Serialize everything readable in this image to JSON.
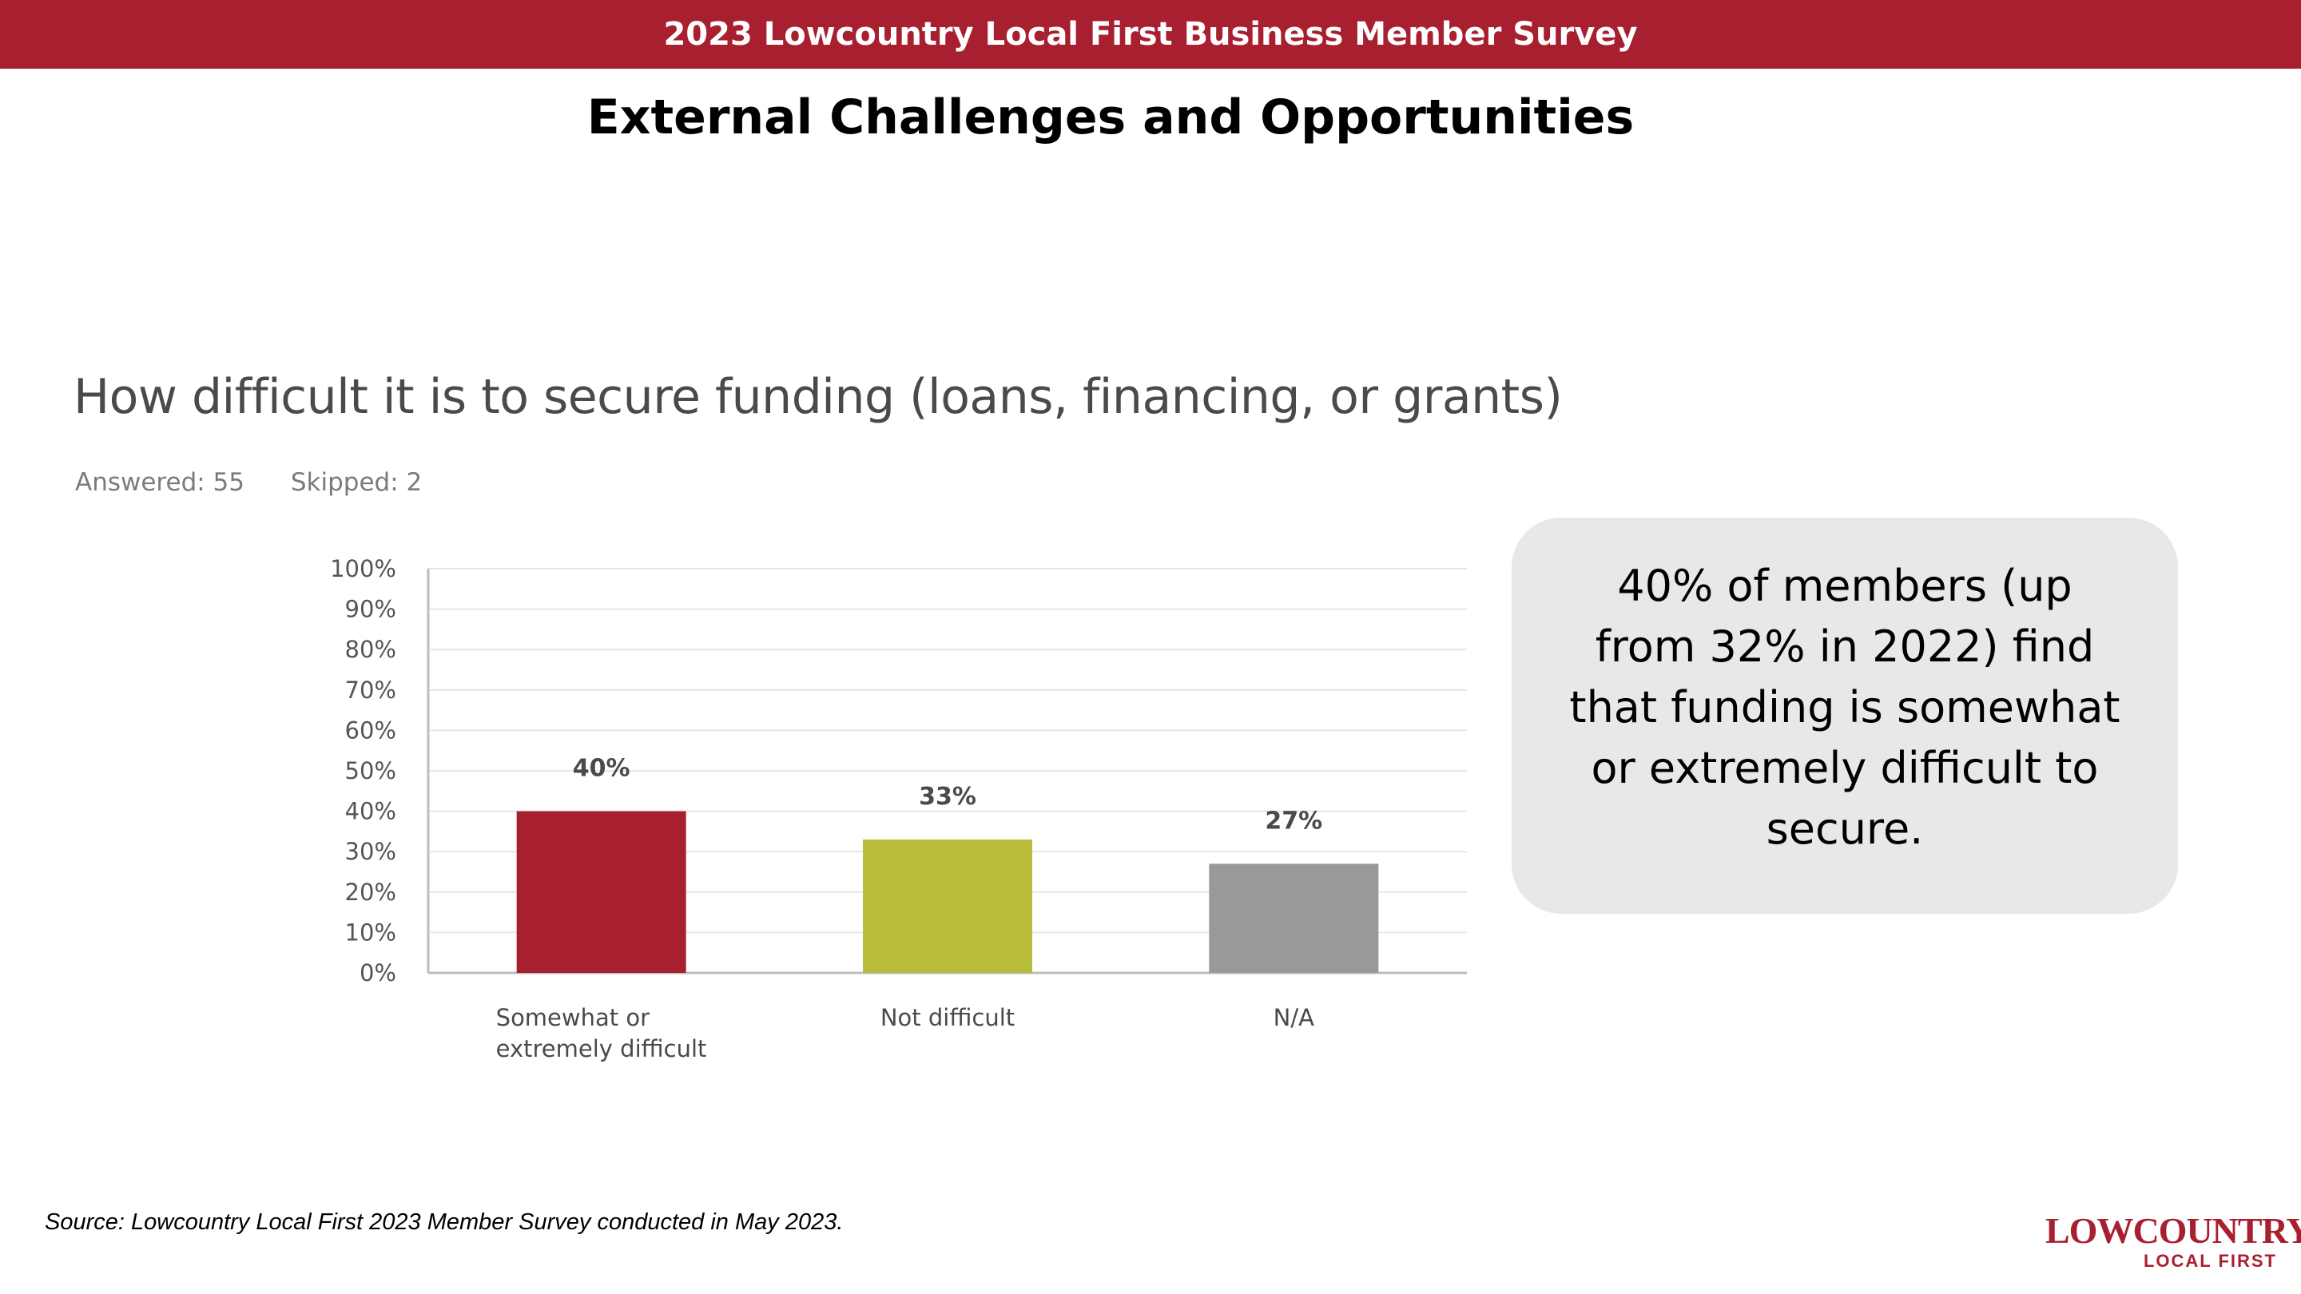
{
  "banner": {
    "title": "2023 Lowcountry Local First Business Member Survey"
  },
  "slide": {
    "title": "External Challenges and Opportunities"
  },
  "question": {
    "text": "How difficult it is to secure funding (loans, financing, or grants)",
    "answered": "Answered: 55",
    "skipped": "Skipped: 2"
  },
  "chart_data": {
    "type": "bar",
    "categories": [
      [
        "Somewhat or",
        "extremely difficult"
      ],
      [
        "Not difficult"
      ],
      [
        "N/A"
      ]
    ],
    "values": [
      40,
      33,
      27
    ],
    "value_labels": [
      "40%",
      "33%",
      "27%"
    ],
    "colors": [
      "#a81f30",
      "#b7bd3a",
      "#999999"
    ],
    "ylim": [
      0,
      100
    ],
    "yticks": [
      0,
      10,
      20,
      30,
      40,
      50,
      60,
      70,
      80,
      90,
      100
    ],
    "ytick_labels": [
      "0%",
      "10%",
      "20%",
      "30%",
      "40%",
      "50%",
      "60%",
      "70%",
      "80%",
      "90%",
      "100%"
    ],
    "grid": true
  },
  "callout": {
    "text": "40% of members (up from 32% in 2022) find that funding is somewhat or extremely difficult to secure."
  },
  "footer": {
    "source": "Source: Lowcountry Local First 2023 Member Survey conducted in May 2023."
  },
  "logo": {
    "main": "LOWCOUNTRY",
    "sub": "LOCAL FIRST"
  },
  "colors": {
    "brand": "#a81f30",
    "callout_bg": "#e8e8e8"
  }
}
